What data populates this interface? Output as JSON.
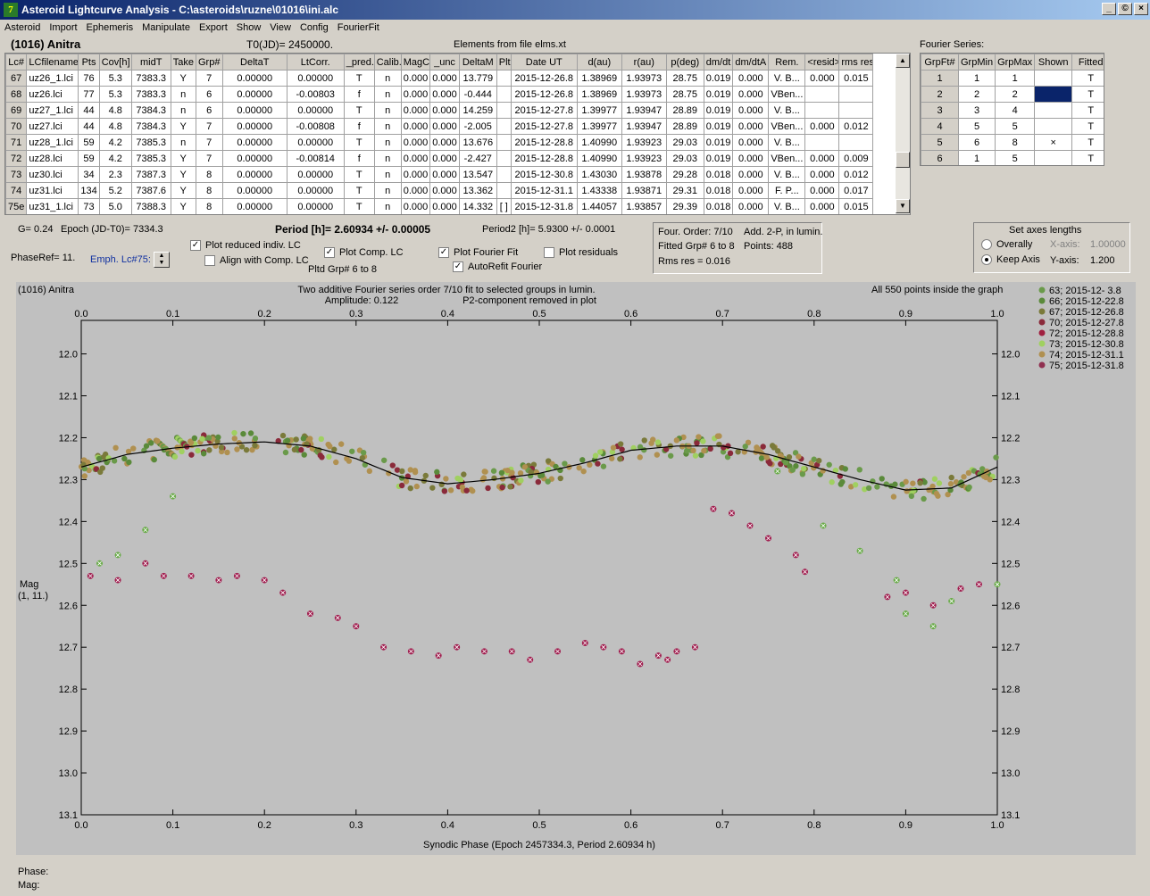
{
  "window": {
    "title": "Asteroid Lightcurve Analysis - C:\\asteroids\\ruzne\\01016\\ini.alc",
    "icon": "app-icon",
    "min": "_",
    "max": "©",
    "close": "×"
  },
  "menu": [
    "Asteroid",
    "Import",
    "Ephemeris",
    "Manipulate",
    "Export",
    "Show",
    "View",
    "Config",
    "FourierFit"
  ],
  "header": {
    "asteroid": "(1016) Anitra",
    "t0": "T0(JD)= 2450000.",
    "elements": "Elements from file elms.xt",
    "fourier_label": "Fourier Series:"
  },
  "lc_table": {
    "columns": [
      "Lc#",
      "LCfilename",
      "Pts",
      "Cov[h]",
      "midT",
      "Take",
      "Grp#",
      "DeltaT",
      "LtCorr.",
      "_pred.",
      "Calib.",
      "MagCS",
      "_unc",
      "DeltaM",
      "Plt",
      "Date UT",
      "d(au)",
      "r(au)",
      "p(deg)",
      "dm/dt",
      "dm/dtA",
      "Rem.",
      "<resid>",
      "rms res"
    ],
    "rows": [
      [
        "67",
        "uz26_1.lci",
        "76",
        "5.3",
        "7383.3",
        "Y",
        "7",
        "0.00000",
        "0.00000",
        "T",
        "n",
        "0.000",
        "0.000",
        "13.779",
        "",
        "2015-12-26.8",
        "1.38969",
        "1.93973",
        "28.75",
        "0.019",
        "0.000",
        "V. B...",
        "0.000",
        "0.015"
      ],
      [
        "68",
        "uz26.lci",
        "77",
        "5.3",
        "7383.3",
        "n",
        "6",
        "0.00000",
        "-0.00803",
        "f",
        "n",
        "0.000",
        "0.000",
        "-0.444",
        "",
        "2015-12-26.8",
        "1.38969",
        "1.93973",
        "28.75",
        "0.019",
        "0.000",
        "VBen...",
        "",
        ""
      ],
      [
        "69",
        "uz27_1.lci",
        "44",
        "4.8",
        "7384.3",
        "n",
        "6",
        "0.00000",
        "0.00000",
        "T",
        "n",
        "0.000",
        "0.000",
        "14.259",
        "",
        "2015-12-27.8",
        "1.39977",
        "1.93947",
        "28.89",
        "0.019",
        "0.000",
        "V. B...",
        "",
        ""
      ],
      [
        "70",
        "uz27.lci",
        "44",
        "4.8",
        "7384.3",
        "Y",
        "7",
        "0.00000",
        "-0.00808",
        "f",
        "n",
        "0.000",
        "0.000",
        "-2.005",
        "",
        "2015-12-27.8",
        "1.39977",
        "1.93947",
        "28.89",
        "0.019",
        "0.000",
        "VBen...",
        "0.000",
        "0.012"
      ],
      [
        "71",
        "uz28_1.lci",
        "59",
        "4.2",
        "7385.3",
        "n",
        "7",
        "0.00000",
        "0.00000",
        "T",
        "n",
        "0.000",
        "0.000",
        "13.676",
        "",
        "2015-12-28.8",
        "1.40990",
        "1.93923",
        "29.03",
        "0.019",
        "0.000",
        "V. B...",
        "",
        ""
      ],
      [
        "72",
        "uz28.lci",
        "59",
        "4.2",
        "7385.3",
        "Y",
        "7",
        "0.00000",
        "-0.00814",
        "f",
        "n",
        "0.000",
        "0.000",
        "-2.427",
        "",
        "2015-12-28.8",
        "1.40990",
        "1.93923",
        "29.03",
        "0.019",
        "0.000",
        "VBen...",
        "0.000",
        "0.009"
      ],
      [
        "73",
        "uz30.lci",
        "34",
        "2.3",
        "7387.3",
        "Y",
        "8",
        "0.00000",
        "0.00000",
        "T",
        "n",
        "0.000",
        "0.000",
        "13.547",
        "",
        "2015-12-30.8",
        "1.43030",
        "1.93878",
        "29.28",
        "0.018",
        "0.000",
        "V. B...",
        "0.000",
        "0.012"
      ],
      [
        "74",
        "uz31.lci",
        "134",
        "5.2",
        "7387.6",
        "Y",
        "8",
        "0.00000",
        "0.00000",
        "T",
        "n",
        "0.000",
        "0.000",
        "13.362",
        "",
        "2015-12-31.1",
        "1.43338",
        "1.93871",
        "29.31",
        "0.018",
        "0.000",
        "F. P...",
        "0.000",
        "0.017"
      ],
      [
        "75e",
        "uz31_1.lci",
        "73",
        "5.0",
        "7388.3",
        "Y",
        "8",
        "0.00000",
        "0.00000",
        "T",
        "n",
        "0.000",
        "0.000",
        "14.332",
        "[ ]",
        "2015-12-31.8",
        "1.44057",
        "1.93857",
        "29.39",
        "0.018",
        "0.000",
        "V. B...",
        "0.000",
        "0.015"
      ]
    ]
  },
  "fourier_table": {
    "columns": [
      "GrpFt#",
      "GrpMin",
      "GrpMax",
      "Shown",
      "Fitted"
    ],
    "rows": [
      [
        "1",
        "1",
        "1",
        "",
        "T"
      ],
      [
        "2",
        "2",
        "2",
        "",
        "T"
      ],
      [
        "3",
        "3",
        "4",
        "",
        "T"
      ],
      [
        "4",
        "5",
        "5",
        "",
        "T"
      ],
      [
        "5",
        "6",
        "8",
        "×",
        "T"
      ],
      [
        "6",
        "1",
        "5",
        "",
        "T"
      ]
    ],
    "shown_color_row": 2,
    "shown_color": "#0a246a"
  },
  "params": {
    "g": "G= 0.24",
    "epoch": "Epoch (JD-T0)= 7334.3",
    "period": "Period [h]= 2.60934 +/- 0.00005",
    "period2": "Period2 [h]= 5.9300 +/- 0.0001",
    "phaseref": "PhaseRef= 11.",
    "emph": "Emph. Lc#75:",
    "plot_reduced": "Plot reduced indiv. LC",
    "align": "Align with Comp. LC",
    "plot_comp": "Plot Comp. LC",
    "pltd_grp": "Pltd Grp#  6  to   8",
    "plot_fourier": "Plot Fourier Fit",
    "autorefit": "AutoRefit Fourier",
    "plot_residuals": "Plot residuals",
    "four_order": "Four. Order:  7/10",
    "add": "Add. 2-P, in lumin.",
    "fitted": "Fitted Grp# 6 to 8",
    "points": "Points: 488",
    "rms": "Rms res      = 0.016",
    "axes_title": "Set axes lengths",
    "overally": "Overally",
    "keep": "Keep Axis",
    "xaxis_label": "X-axis:",
    "xaxis_val": "1.00000",
    "yaxis_label": "Y-axis:",
    "yaxis_val": "1.200"
  },
  "status": {
    "phase": "Phase:",
    "mag": "Mag:"
  },
  "chart_data": {
    "type": "scatter",
    "title_left": "(1016) Anitra",
    "title_center1": "Two additive Fourier series order 7/10 fit to selected groups in lumin.",
    "title_center2a": "Amplitude: 0.122",
    "title_center2b": "P2-component removed in plot",
    "title_right": "All 550 points inside the graph",
    "xlabel": "Synodic Phase (Epoch 2457334.3, Period 2.60934 h)",
    "ylabel1": "Mag",
    "ylabel2": "(1, 11.)",
    "xlim": [
      0,
      1
    ],
    "ylim": [
      13.1,
      11.9
    ],
    "xticks": [
      "0.0",
      "0.1",
      "0.2",
      "0.3",
      "0.4",
      "0.5",
      "0.6",
      "0.7",
      "0.8",
      "0.9",
      "1.0"
    ],
    "yticks": [
      "12.0",
      "12.1",
      "12.2",
      "12.3",
      "12.4",
      "12.5",
      "12.6",
      "12.7",
      "12.8",
      "12.9",
      "13.0",
      "13.1"
    ],
    "legend": [
      {
        "label": "63; 2015-12- 3.8",
        "color": "#6a9a4a"
      },
      {
        "label": "66; 2015-12-22.8",
        "color": "#5a8a3a"
      },
      {
        "label": "67; 2015-12-26.8",
        "color": "#7a7a3a"
      },
      {
        "label": "70; 2015-12-27.8",
        "color": "#8a2a3a"
      },
      {
        "label": "72; 2015-12-28.8",
        "color": "#a02040"
      },
      {
        "label": "73; 2015-12-30.8",
        "color": "#a0d060"
      },
      {
        "label": "74; 2015-12-31.1",
        "color": "#b09050"
      },
      {
        "label": "75; 2015-12-31.8",
        "color": "#903050"
      }
    ],
    "fourier_curve": {
      "x": [
        0,
        0.05,
        0.1,
        0.15,
        0.2,
        0.25,
        0.3,
        0.35,
        0.4,
        0.45,
        0.5,
        0.55,
        0.6,
        0.65,
        0.7,
        0.75,
        0.8,
        0.85,
        0.9,
        0.95,
        1.0
      ],
      "y": [
        12.27,
        12.24,
        12.225,
        12.215,
        12.21,
        12.22,
        12.25,
        12.295,
        12.31,
        12.3,
        12.285,
        12.26,
        12.23,
        12.22,
        12.22,
        12.24,
        12.27,
        12.3,
        12.325,
        12.32,
        12.27
      ]
    },
    "series_green_comp": {
      "x": [
        0.02,
        0.04,
        0.07,
        0.1
      ],
      "y": [
        12.5,
        12.48,
        12.42,
        12.34
      ]
    },
    "series_green_comp2": {
      "x": [
        0.76,
        0.81,
        0.85,
        0.89,
        0.9,
        0.93,
        0.95,
        1.0
      ],
      "y": [
        12.28,
        12.41,
        12.47,
        12.54,
        12.62,
        12.65,
        12.59,
        12.55
      ]
    },
    "series_red_comp": {
      "x": [
        0.01,
        0.04,
        0.07,
        0.09,
        0.12,
        0.15,
        0.17,
        0.2,
        0.22,
        0.25,
        0.28,
        0.3,
        0.33,
        0.36,
        0.39,
        0.41,
        0.44,
        0.47,
        0.49,
        0.52,
        0.55,
        0.57,
        0.59,
        0.61,
        0.63,
        0.64,
        0.65,
        0.67,
        0.69,
        0.71,
        0.73,
        0.75,
        0.78,
        0.79,
        0.88,
        0.9,
        0.93,
        0.96,
        0.98
      ],
      "y": [
        12.53,
        12.54,
        12.5,
        12.53,
        12.53,
        12.54,
        12.53,
        12.54,
        12.57,
        12.62,
        12.63,
        12.65,
        12.7,
        12.71,
        12.72,
        12.7,
        12.71,
        12.71,
        12.73,
        12.71,
        12.69,
        12.7,
        12.71,
        12.74,
        12.72,
        12.73,
        12.71,
        12.7,
        12.37,
        12.38,
        12.41,
        12.44,
        12.48,
        12.52,
        12.58,
        12.57,
        12.6,
        12.56,
        12.55
      ]
    }
  }
}
